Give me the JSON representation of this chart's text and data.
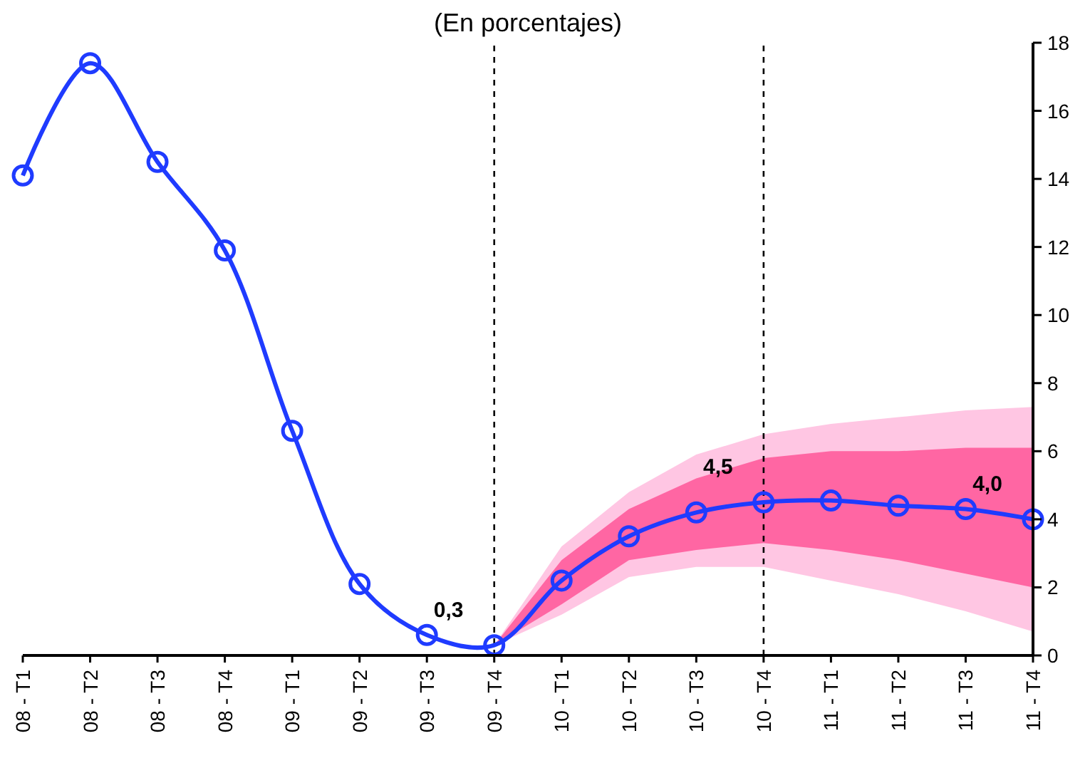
{
  "chart_data": {
    "type": "line",
    "title": "(En porcentajes)",
    "categories": [
      "08 - T1",
      "08 - T2",
      "08 - T3",
      "08 - T4",
      "09 - T1",
      "09 - T2",
      "09 - T3",
      "09 - T4",
      "10 - T1",
      "10 - T2",
      "10 - T3",
      "10 - T4",
      "11 - T1",
      "11 - T2",
      "11 - T3",
      "11 - T4"
    ],
    "series": [
      {
        "type": "area",
        "color": "#ffc6e3",
        "values": [
          null,
          null,
          null,
          null,
          null,
          null,
          null,
          null,
          null,
          null,
          null,
          null,
          null,
          null,
          null,
          null
        ],
        "lower": [
          null,
          null,
          null,
          null,
          null,
          null,
          null,
          0.3,
          1.2,
          2.3,
          2.6,
          2.6,
          2.2,
          1.8,
          1.3,
          0.7
        ],
        "upper": [
          null,
          null,
          null,
          null,
          null,
          null,
          null,
          0.3,
          3.2,
          4.8,
          5.9,
          6.5,
          6.8,
          7.0,
          7.2,
          7.3
        ]
      },
      {
        "type": "area",
        "color": "#ff66a3",
        "values": [
          null,
          null,
          null,
          null,
          null,
          null,
          null,
          null,
          null,
          null,
          null,
          null,
          null,
          null,
          null,
          null
        ],
        "lower": [
          null,
          null,
          null,
          null,
          null,
          null,
          null,
          0.3,
          1.5,
          2.8,
          3.1,
          3.3,
          3.1,
          2.8,
          2.4,
          2.0
        ],
        "upper": [
          null,
          null,
          null,
          null,
          null,
          null,
          null,
          0.3,
          2.8,
          4.3,
          5.2,
          5.8,
          6.0,
          6.0,
          6.1,
          6.1
        ]
      },
      {
        "color": "#1f3bff",
        "values": [
          14.1,
          17.4,
          14.5,
          11.9,
          6.6,
          2.1,
          0.6,
          0.3,
          2.2,
          3.5,
          4.2,
          4.5,
          4.55,
          4.4,
          4.3,
          4.0
        ],
        "value_labels": [
          null,
          null,
          null,
          null,
          null,
          null,
          null,
          "0,3",
          null,
          null,
          null,
          "4,5",
          null,
          null,
          null,
          "4,0"
        ]
      }
    ],
    "ylim": [
      0,
      18
    ],
    "yticks": [
      0,
      2,
      4,
      6,
      8,
      10,
      12,
      14,
      16,
      18
    ],
    "ref_lines": [
      {
        "axis": "x",
        "value": "09 - T4",
        "line_style": "dashed"
      },
      {
        "axis": "x",
        "value": "10 - T4",
        "line_style": "dashed"
      }
    ],
    "marker": "circle",
    "line_style": "solid",
    "grid": false
  }
}
